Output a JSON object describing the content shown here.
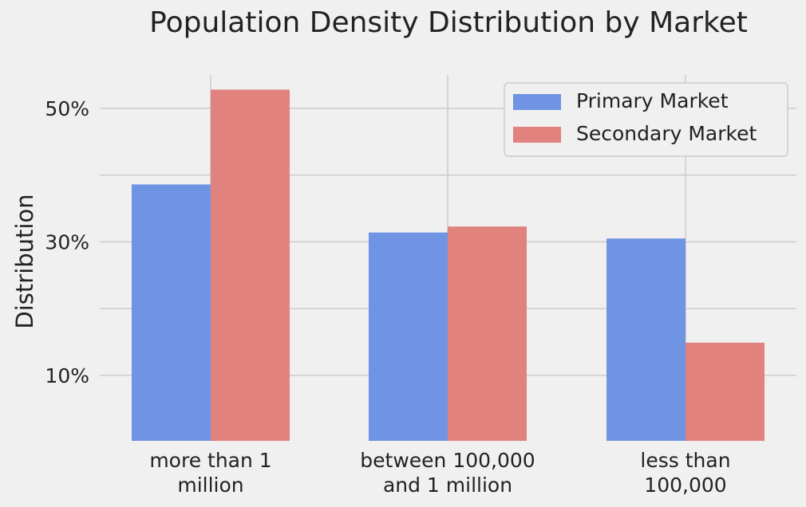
{
  "chart_data": {
    "type": "bar",
    "title": "Population Density Distribution by Market",
    "xlabel": "",
    "ylabel": "Distribution",
    "categories": [
      [
        "more than 1",
        "million"
      ],
      [
        "between 100,000",
        "and 1 million"
      ],
      [
        "less than",
        "100,000"
      ]
    ],
    "series": [
      {
        "name": "Primary Market",
        "values": [
          38.6,
          31.4,
          30.5
        ],
        "color": "#6f94e3"
      },
      {
        "name": "Secondary Market",
        "values": [
          52.8,
          32.3,
          14.9
        ],
        "color": "#e1827e"
      }
    ],
    "yticks": [
      10,
      30,
      50
    ],
    "ytick_labels": [
      "10%",
      "30%",
      "50%"
    ],
    "ylim": [
      0.2,
      55.0
    ],
    "grid": true,
    "legend": "top-right"
  }
}
